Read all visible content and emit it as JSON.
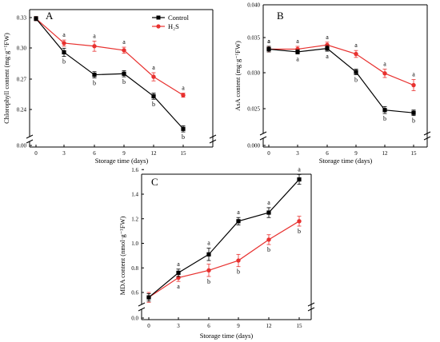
{
  "chart_data": [
    {
      "type": "line",
      "panel": "A",
      "xlabel": "Storage time (days)",
      "ylabel": "Chlorophyll content (mg·g⁻¹FW)",
      "x": [
        0,
        3,
        6,
        9,
        12,
        15
      ],
      "x_ticks": [
        "0",
        "3",
        "6",
        "9",
        "12",
        "15"
      ],
      "y_ticks": [
        "0.00",
        "0.24",
        "0.27",
        "0.30",
        "0.33"
      ],
      "ylim": [
        0.21,
        0.335
      ],
      "axis_break": true,
      "legend_position": "top-right",
      "series": [
        {
          "name": "Control",
          "color": "#000000",
          "marker": "square",
          "values": [
            0.329,
            0.296,
            0.274,
            0.275,
            0.253,
            0.221
          ],
          "errors": [
            0.002,
            0.004,
            0.003,
            0.003,
            0.003,
            0.003
          ],
          "labels": [
            "",
            "b",
            "b",
            "b",
            "b",
            "b"
          ]
        },
        {
          "name": "H₂S",
          "color": "#e8312f",
          "marker": "circle",
          "values": [
            0.329,
            0.305,
            0.302,
            0.298,
            0.272,
            0.254
          ],
          "errors": [
            0.002,
            0.003,
            0.005,
            0.003,
            0.004,
            0.002
          ],
          "labels": [
            "",
            "a",
            "a",
            "a",
            "a",
            "a"
          ]
        }
      ]
    },
    {
      "type": "line",
      "panel": "B",
      "xlabel": "Storage time (days)",
      "ylabel": "AsA content (mg·g⁻¹FW)",
      "x": [
        0,
        3,
        6,
        9,
        12,
        15
      ],
      "x_ticks": [
        "0",
        "3",
        "6",
        "9",
        "12",
        "15"
      ],
      "y_ticks": [
        "0.000",
        "0.025",
        "0.030",
        "0.035",
        "0.040"
      ],
      "ylim": [
        0.0215,
        0.04
      ],
      "axis_break": true,
      "series": [
        {
          "name": "Control",
          "color": "#000000",
          "marker": "square",
          "values": [
            0.0336,
            0.0332,
            0.0337,
            0.0303,
            0.0248,
            0.0244
          ],
          "errors": [
            0.0004,
            0.0003,
            0.0004,
            0.0004,
            0.0005,
            0.0004
          ],
          "labels": [
            "a",
            "a",
            "a",
            "b",
            "b",
            "b"
          ]
        },
        {
          "name": "H₂S",
          "color": "#e8312f",
          "marker": "circle",
          "values": [
            0.0336,
            0.0336,
            0.0342,
            0.0329,
            0.0301,
            0.0284
          ],
          "errors": [
            0.0004,
            0.0004,
            0.0004,
            0.0005,
            0.0006,
            0.0008
          ],
          "labels": [
            "a",
            "a",
            "a",
            "a",
            "a",
            "a"
          ]
        }
      ]
    },
    {
      "type": "line",
      "panel": "C",
      "xlabel": "Storage time (days)",
      "ylabel": "MDA content (nmol·g⁻¹FW)",
      "x": [
        0,
        3,
        6,
        9,
        12,
        15
      ],
      "x_ticks": [
        "0",
        "3",
        "6",
        "9",
        "12",
        "15"
      ],
      "y_ticks": [
        "0.0",
        "0.6",
        "0.8",
        "1.0",
        "1.2",
        "1.4",
        "1.6"
      ],
      "ylim": [
        0.45,
        1.7
      ],
      "axis_break": true,
      "series": [
        {
          "name": "Control",
          "color": "#000000",
          "marker": "square",
          "values": [
            0.56,
            0.76,
            0.91,
            1.18,
            1.25,
            1.52
          ],
          "errors": [
            0.03,
            0.03,
            0.05,
            0.03,
            0.04,
            0.04
          ],
          "labels": [
            "",
            "a",
            "a",
            "a",
            "a",
            "a"
          ]
        },
        {
          "name": "H₂S",
          "color": "#e8312f",
          "marker": "circle",
          "values": [
            0.56,
            0.72,
            0.78,
            0.86,
            1.03,
            1.18
          ],
          "errors": [
            0.04,
            0.03,
            0.05,
            0.05,
            0.04,
            0.04
          ],
          "labels": [
            "",
            "a",
            "b",
            "b",
            "b",
            "b"
          ]
        }
      ]
    }
  ]
}
